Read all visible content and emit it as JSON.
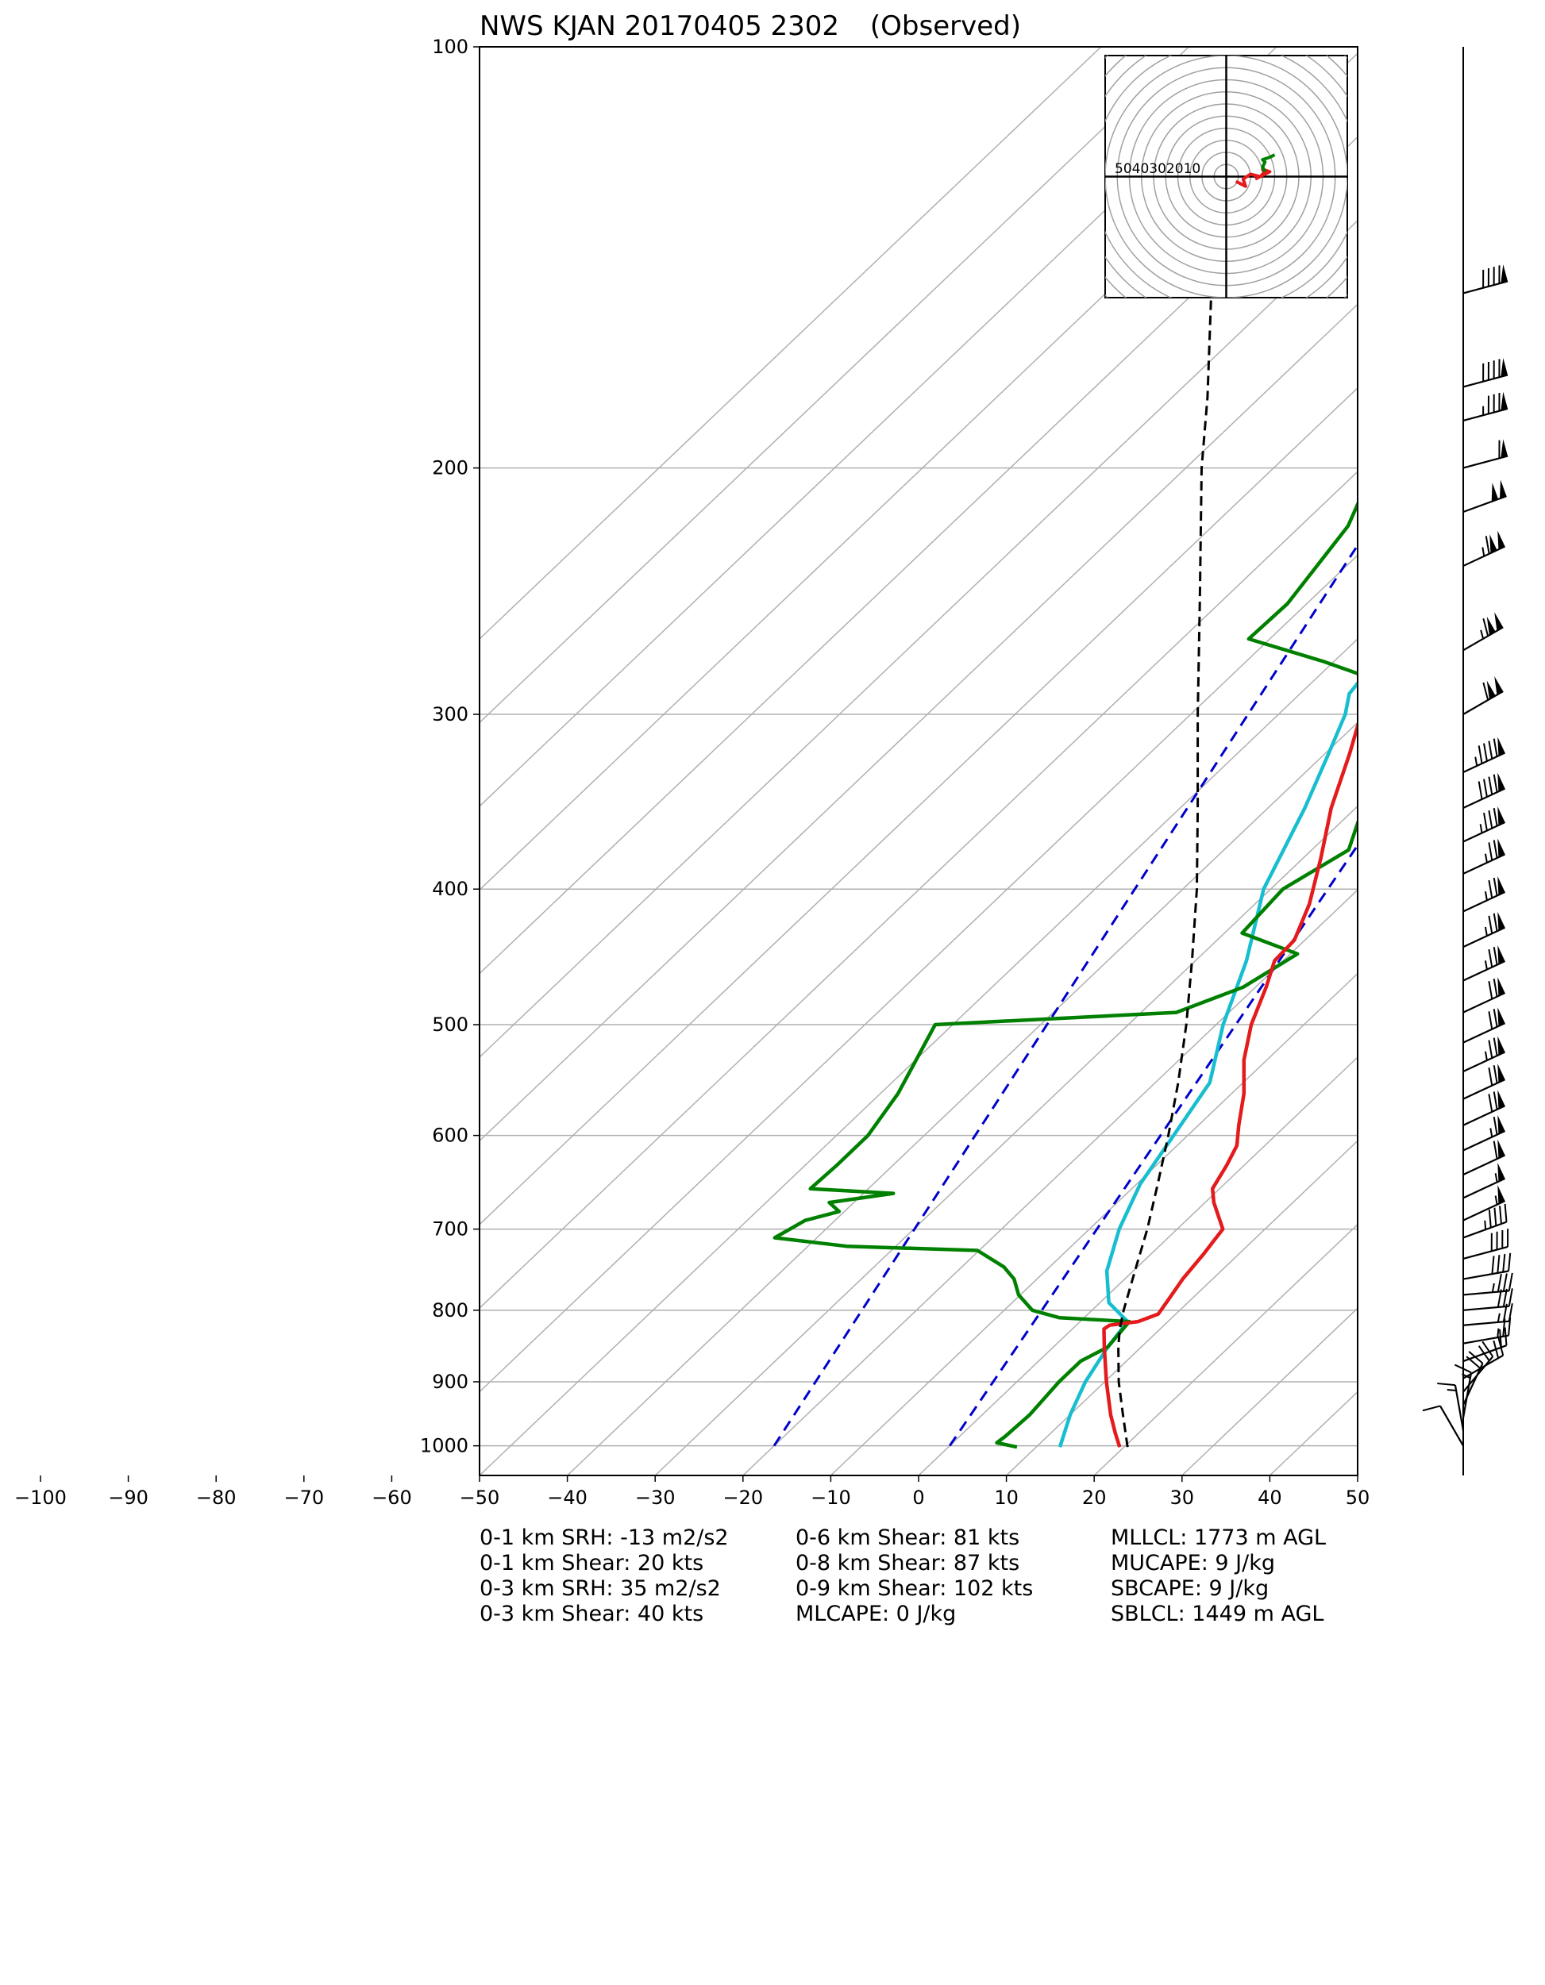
{
  "chart_data": {
    "type": "skew-t",
    "title": "NWS KJAN 20170405 2302",
    "subtitle": "(Observed)",
    "xlabel": "",
    "ylabel": "",
    "x_unit": "degC",
    "y_unit": "hPa",
    "xlim": [
      -50,
      50
    ],
    "ylim": [
      1050,
      100
    ],
    "y_scale": "log",
    "x_ticks": [
      -100,
      -90,
      -80,
      -70,
      -60,
      -50,
      -40,
      -30,
      -20,
      -10,
      0,
      10,
      20,
      30,
      40,
      50
    ],
    "y_ticks": [
      1000,
      900,
      800,
      700,
      600,
      500,
      400,
      300,
      200,
      100
    ],
    "grid": true,
    "isotherm_spacing_c": 10,
    "series": [
      {
        "name": "",
        "role": "temperature",
        "color": "#e41a1c",
        "points": [
          {
            "p": 1002,
            "t": 19.5
          },
          {
            "p": 980,
            "t": 17.4
          },
          {
            "p": 950,
            "t": 14.6
          },
          {
            "p": 900,
            "t": 10.2
          },
          {
            "p": 850,
            "t": 5.8
          },
          {
            "p": 825,
            "t": 3.6
          },
          {
            "p": 820,
            "t": 3.8
          },
          {
            "p": 815,
            "t": 6.6
          },
          {
            "p": 805,
            "t": 8.0
          },
          {
            "p": 785,
            "t": 7.4
          },
          {
            "p": 760,
            "t": 6.6
          },
          {
            "p": 730,
            "t": 6.0
          },
          {
            "p": 700,
            "t": 5.2
          },
          {
            "p": 670,
            "t": 1.0
          },
          {
            "p": 655,
            "t": -0.8
          },
          {
            "p": 630,
            "t": -2.0
          },
          {
            "p": 610,
            "t": -3.2
          },
          {
            "p": 590,
            "t": -5.4
          },
          {
            "p": 560,
            "t": -8.6
          },
          {
            "p": 530,
            "t": -12.6
          },
          {
            "p": 500,
            "t": -16.0
          },
          {
            "p": 470,
            "t": -18.8
          },
          {
            "p": 450,
            "t": -21.0
          },
          {
            "p": 435,
            "t": -21.2
          },
          {
            "p": 410,
            "t": -23.8
          },
          {
            "p": 380,
            "t": -28.0
          },
          {
            "p": 350,
            "t": -32.8
          },
          {
            "p": 320,
            "t": -37.2
          },
          {
            "p": 300,
            "t": -40.6
          },
          {
            "p": 290,
            "t": -42.4
          },
          {
            "p": 280,
            "t": -43.4
          },
          {
            "p": 250,
            "t": -46.4
          },
          {
            "p": 230,
            "t": -48.8
          },
          {
            "p": 215,
            "t": -51.8
          },
          {
            "p": 200,
            "t": -54.4
          },
          {
            "p": 185,
            "t": -56.6
          },
          {
            "p": 170,
            "t": -58.8
          },
          {
            "p": 160,
            "t": -60.6
          },
          {
            "p": 150,
            "t": -62.6
          },
          {
            "p": 140,
            "t": -65.4
          },
          {
            "p": 125,
            "t": -68.8
          },
          {
            "p": 115,
            "t": -71.2
          },
          {
            "p": 108,
            "t": -73.0
          },
          {
            "p": 100,
            "t": -75.2
          }
        ]
      },
      {
        "name": "",
        "role": "dewpoint",
        "color": "#008000",
        "points": [
          {
            "p": 1002,
            "t": 7.8
          },
          {
            "p": 995,
            "t": 5.0
          },
          {
            "p": 985,
            "t": 5.2
          },
          {
            "p": 950,
            "t": 5.4
          },
          {
            "p": 900,
            "t": 4.8
          },
          {
            "p": 870,
            "t": 4.8
          },
          {
            "p": 850,
            "t": 6.2
          },
          {
            "p": 815,
            "t": 5.6
          },
          {
            "p": 810,
            "t": -2.8
          },
          {
            "p": 800,
            "t": -6.8
          },
          {
            "p": 780,
            "t": -10.2
          },
          {
            "p": 760,
            "t": -12.6
          },
          {
            "p": 745,
            "t": -15.2
          },
          {
            "p": 725,
            "t": -20.2
          },
          {
            "p": 720,
            "t": -35.6
          },
          {
            "p": 710,
            "t": -44.8
          },
          {
            "p": 690,
            "t": -43.4
          },
          {
            "p": 680,
            "t": -40.6
          },
          {
            "p": 670,
            "t": -42.8
          },
          {
            "p": 660,
            "t": -36.6
          },
          {
            "p": 655,
            "t": -46.6
          },
          {
            "p": 630,
            "t": -46.4
          },
          {
            "p": 600,
            "t": -46.4
          },
          {
            "p": 560,
            "t": -48.0
          },
          {
            "p": 500,
            "t": -52.0
          },
          {
            "p": 490,
            "t": -26.0
          },
          {
            "p": 470,
            "t": -21.4
          },
          {
            "p": 445,
            "t": -19.2
          },
          {
            "p": 430,
            "t": -28.0
          },
          {
            "p": 400,
            "t": -28.6
          },
          {
            "p": 375,
            "t": -25.8
          },
          {
            "p": 350,
            "t": -29.2
          },
          {
            "p": 335,
            "t": -22.0
          },
          {
            "p": 330,
            "t": -23.2
          },
          {
            "p": 320,
            "t": -33.0
          },
          {
            "p": 305,
            "t": -36.0
          },
          {
            "p": 295,
            "t": -36.8
          },
          {
            "p": 285,
            "t": -41.6
          },
          {
            "p": 275,
            "t": -51.2
          },
          {
            "p": 265,
            "t": -62.4
          },
          {
            "p": 250,
            "t": -62.2
          },
          {
            "p": 220,
            "t": -64.6
          },
          {
            "p": 200,
            "t": -68.6
          },
          {
            "p": 190,
            "t": -69.4
          },
          {
            "p": 175,
            "t": -70.4
          },
          {
            "p": 160,
            "t": -71.4
          },
          {
            "p": 140,
            "t": -74.4
          },
          {
            "p": 120,
            "t": -76.4
          },
          {
            "p": 110,
            "t": -78.8
          },
          {
            "p": 100,
            "t": -81.8
          }
        ]
      },
      {
        "name": "",
        "role": "wetbulb",
        "color": "#17becf",
        "points": [
          {
            "p": 1002,
            "t": 12.7
          },
          {
            "p": 950,
            "t": 10.0
          },
          {
            "p": 900,
            "t": 7.8
          },
          {
            "p": 850,
            "t": 6.2
          },
          {
            "p": 815,
            "t": 5.4
          },
          {
            "p": 790,
            "t": 1.0
          },
          {
            "p": 750,
            "t": -3.0
          },
          {
            "p": 700,
            "t": -6.6
          },
          {
            "p": 650,
            "t": -9.6
          },
          {
            "p": 600,
            "t": -11.6
          },
          {
            "p": 550,
            "t": -13.8
          },
          {
            "p": 500,
            "t": -19.2
          },
          {
            "p": 450,
            "t": -24.2
          },
          {
            "p": 400,
            "t": -30.8
          },
          {
            "p": 350,
            "t": -35.8
          },
          {
            "p": 320,
            "t": -39.6
          },
          {
            "p": 300,
            "t": -42.4
          },
          {
            "p": 290,
            "t": -44.4
          },
          {
            "p": 280,
            "t": -45.0
          },
          {
            "p": 250,
            "t": -48.0
          },
          {
            "p": 230,
            "t": -49.6
          },
          {
            "p": 215,
            "t": -53.0
          },
          {
            "p": 200,
            "t": -56.0
          },
          {
            "p": 185,
            "t": -58.4
          },
          {
            "p": 170,
            "t": -60.6
          },
          {
            "p": 160,
            "t": -62.6
          },
          {
            "p": 150,
            "t": -64.4
          },
          {
            "p": 140,
            "t": -66.4
          },
          {
            "p": 125,
            "t": -70.0
          },
          {
            "p": 115,
            "t": -72.4
          },
          {
            "p": 108,
            "t": -73.8
          },
          {
            "p": 100,
            "t": -75.8
          }
        ]
      },
      {
        "name": "",
        "role": "parcel",
        "color": "#000000",
        "dashed": true,
        "points": [
          {
            "p": 1002,
            "t": 20.4
          },
          {
            "p": 950,
            "t": 16.0
          },
          {
            "p": 900,
            "t": 11.6
          },
          {
            "p": 850,
            "t": 7.4
          },
          {
            "p": 825,
            "t": 5.4
          },
          {
            "p": 800,
            "t": 3.6
          },
          {
            "p": 750,
            "t": 0.2
          },
          {
            "p": 700,
            "t": -3.4
          },
          {
            "p": 650,
            "t": -7.6
          },
          {
            "p": 600,
            "t": -12.2
          },
          {
            "p": 550,
            "t": -17.4
          },
          {
            "p": 500,
            "t": -23.4
          },
          {
            "p": 450,
            "t": -30.4
          },
          {
            "p": 400,
            "t": -38.4
          },
          {
            "p": 350,
            "t": -48.0
          },
          {
            "p": 300,
            "t": -59.2
          },
          {
            "p": 250,
            "t": -72.2
          },
          {
            "p": 200,
            "t": -88.2
          },
          {
            "p": 178,
            "t": -96.0
          },
          {
            "p": 150,
            "t": -108.0
          }
        ]
      }
    ],
    "reference_lines": [
      {
        "style": "dashed",
        "color": "#0000cc",
        "p": [
          1000,
          100
        ],
        "t": [
          -20,
          -84
        ]
      },
      {
        "style": "dashed",
        "color": "#0000cc",
        "p": [
          1000,
          100
        ],
        "t": [
          0,
          -59
        ]
      }
    ],
    "hodograph": {
      "ring_spacing_kts": 10,
      "ring_labels": [
        "50",
        "40",
        "30",
        "20",
        "10"
      ],
      "segments": [
        {
          "color": "#e41a1c",
          "points": [
            [
              4,
              -2
            ],
            [
              8,
              -4
            ],
            [
              7,
              -1
            ],
            [
              10,
              1
            ],
            [
              14,
              0
            ],
            [
              16,
              2
            ],
            [
              15,
              3
            ],
            [
              18,
              2
            ],
            [
              12,
              -1
            ]
          ]
        },
        {
          "color": "#008000",
          "points": [
            [
              16,
              2
            ],
            [
              15,
              4
            ],
            [
              16,
              6
            ],
            [
              15,
              7
            ],
            [
              18,
              8
            ],
            [
              20,
              9
            ]
          ]
        }
      ]
    },
    "wind_barbs": [
      {
        "p": 150,
        "dir_deg": 255,
        "speed_kts": 90
      },
      {
        "p": 175,
        "dir_deg": 255,
        "speed_kts": 90
      },
      {
        "p": 185,
        "dir_deg": 255,
        "speed_kts": 85
      },
      {
        "p": 200,
        "dir_deg": 255,
        "speed_kts": 60
      },
      {
        "p": 215,
        "dir_deg": 250,
        "speed_kts": 100
      },
      {
        "p": 235,
        "dir_deg": 245,
        "speed_kts": 115
      },
      {
        "p": 270,
        "dir_deg": 240,
        "speed_kts": 115
      },
      {
        "p": 300,
        "dir_deg": 240,
        "speed_kts": 110
      },
      {
        "p": 330,
        "dir_deg": 245,
        "speed_kts": 95
      },
      {
        "p": 350,
        "dir_deg": 245,
        "speed_kts": 90
      },
      {
        "p": 370,
        "dir_deg": 245,
        "speed_kts": 85
      },
      {
        "p": 390,
        "dir_deg": 245,
        "speed_kts": 75
      },
      {
        "p": 415,
        "dir_deg": 245,
        "speed_kts": 75
      },
      {
        "p": 440,
        "dir_deg": 245,
        "speed_kts": 75
      },
      {
        "p": 465,
        "dir_deg": 245,
        "speed_kts": 75
      },
      {
        "p": 490,
        "dir_deg": 245,
        "speed_kts": 70
      },
      {
        "p": 515,
        "dir_deg": 245,
        "speed_kts": 70
      },
      {
        "p": 540,
        "dir_deg": 245,
        "speed_kts": 75
      },
      {
        "p": 565,
        "dir_deg": 245,
        "speed_kts": 70
      },
      {
        "p": 590,
        "dir_deg": 245,
        "speed_kts": 70
      },
      {
        "p": 615,
        "dir_deg": 245,
        "speed_kts": 65
      },
      {
        "p": 640,
        "dir_deg": 245,
        "speed_kts": 60
      },
      {
        "p": 665,
        "dir_deg": 245,
        "speed_kts": 55
      },
      {
        "p": 690,
        "dir_deg": 245,
        "speed_kts": 55
      },
      {
        "p": 710,
        "dir_deg": 250,
        "speed_kts": 45
      },
      {
        "p": 735,
        "dir_deg": 255,
        "speed_kts": 40
      },
      {
        "p": 760,
        "dir_deg": 260,
        "speed_kts": 40
      },
      {
        "p": 780,
        "dir_deg": 265,
        "speed_kts": 35
      },
      {
        "p": 800,
        "dir_deg": 265,
        "speed_kts": 30
      },
      {
        "p": 820,
        "dir_deg": 265,
        "speed_kts": 25
      },
      {
        "p": 845,
        "dir_deg": 260,
        "speed_kts": 25
      },
      {
        "p": 870,
        "dir_deg": 250,
        "speed_kts": 20
      },
      {
        "p": 895,
        "dir_deg": 240,
        "speed_kts": 20
      },
      {
        "p": 915,
        "dir_deg": 220,
        "speed_kts": 20
      },
      {
        "p": 935,
        "dir_deg": 205,
        "speed_kts": 20
      },
      {
        "p": 955,
        "dir_deg": 190,
        "speed_kts": 15
      },
      {
        "p": 975,
        "dir_deg": 170,
        "speed_kts": 15
      },
      {
        "p": 1000,
        "dir_deg": 150,
        "speed_kts": 10
      }
    ]
  },
  "stats": {
    "col1": [
      "0-1 km SRH: -13 m2/s2",
      "0-1 km Shear: 20 kts",
      "0-3 km SRH: 35 m2/s2",
      "0-3 km Shear: 40 kts"
    ],
    "col2": [
      "0-6 km Shear: 81 kts",
      "0-8 km Shear: 87 kts",
      "0-9 km Shear: 102 kts",
      "MLCAPE: 0 J/kg"
    ],
    "col3": [
      "MLLCL: 1773 m AGL",
      "MUCAPE: 9 J/kg",
      "SBCAPE: 9 J/kg",
      "SBLCL: 1449 m AGL"
    ]
  }
}
